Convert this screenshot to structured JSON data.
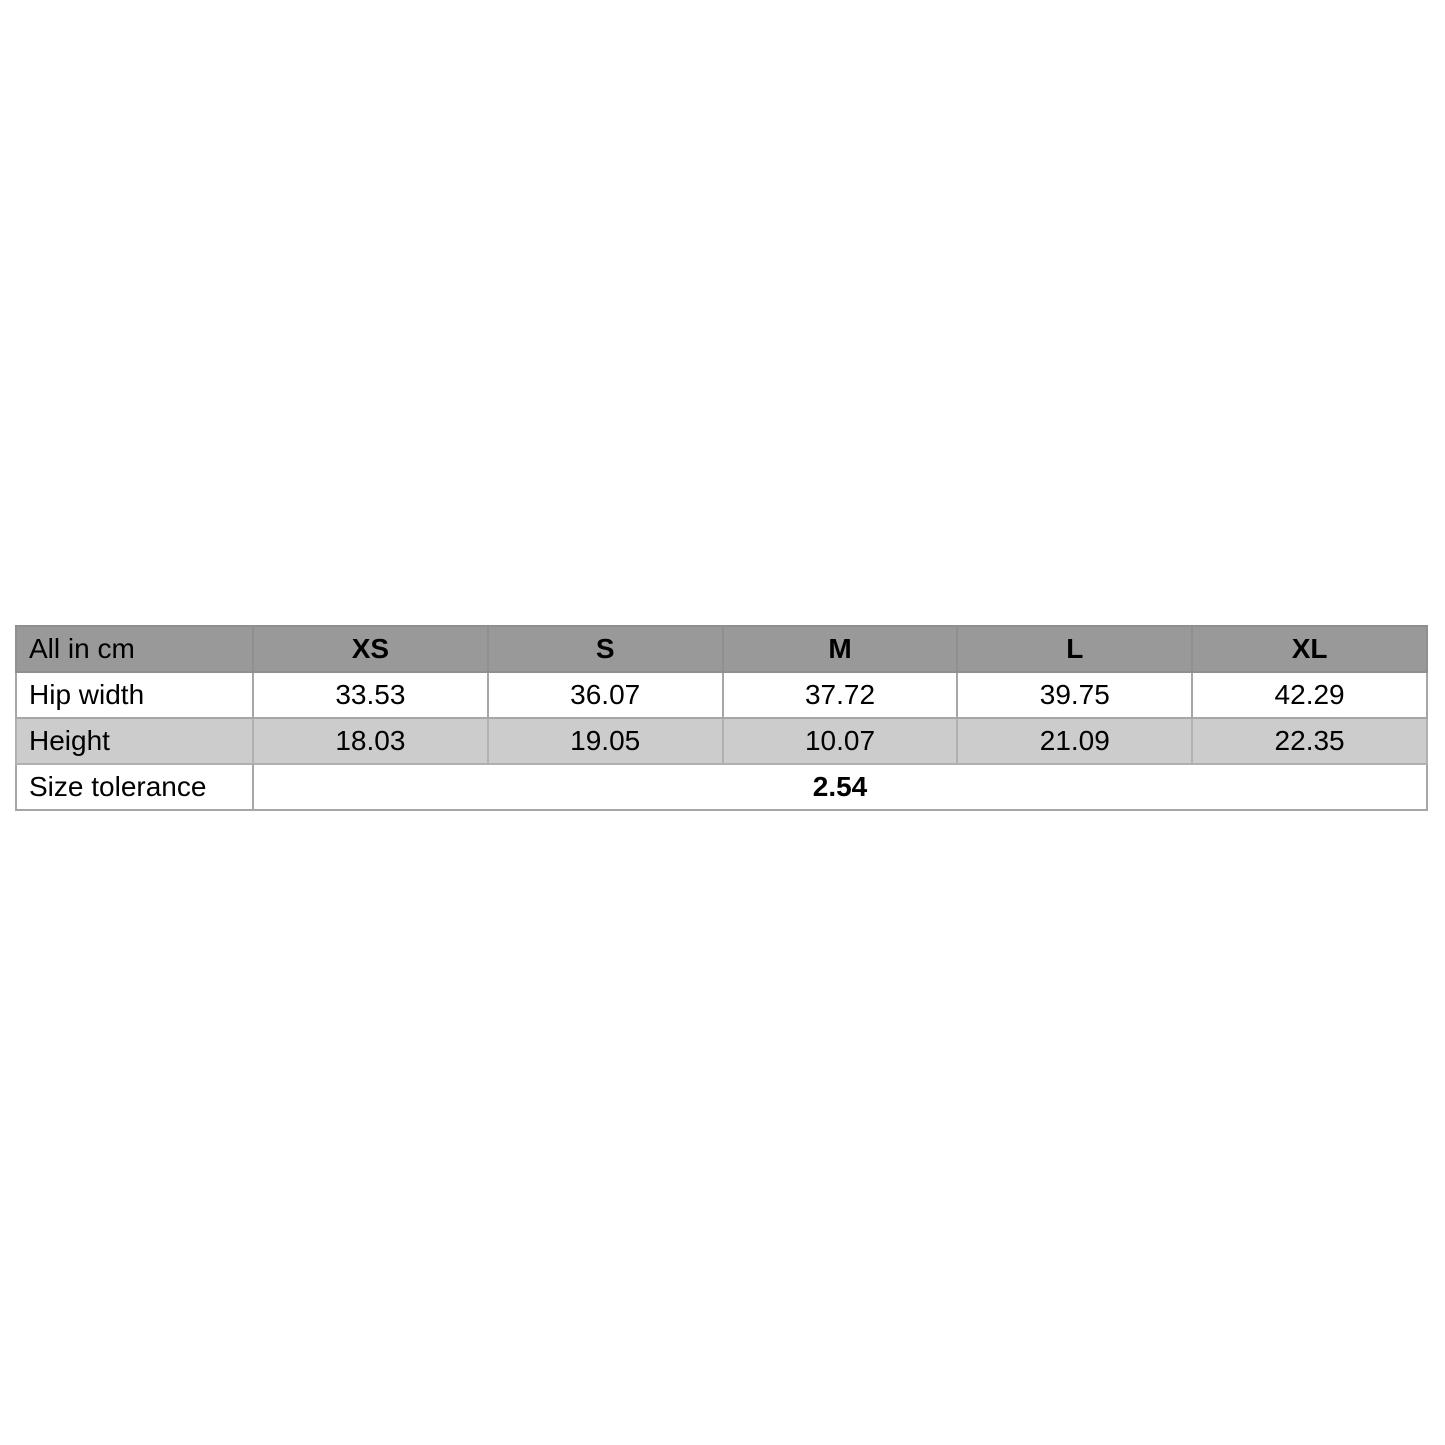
{
  "page": {
    "background_color": "#ffffff"
  },
  "size_chart": {
    "unit_label": "All in cm",
    "columns": [
      "XS",
      "S",
      "M",
      "L",
      "XL"
    ],
    "rows": [
      {
        "label": "Hip width",
        "values": [
          "33.53",
          "36.07",
          "37.72",
          "39.75",
          "42.29"
        ]
      },
      {
        "label": "Height",
        "values": [
          "18.03",
          "19.05",
          "10.07",
          "21.09",
          "22.35"
        ]
      }
    ],
    "tolerance": {
      "label": "Size tolerance",
      "value": "2.54"
    },
    "colors": {
      "header_bg": "#999999",
      "alt_row_bg": "#cccccc",
      "border": "#a6a6a6",
      "text": "#000000"
    }
  }
}
